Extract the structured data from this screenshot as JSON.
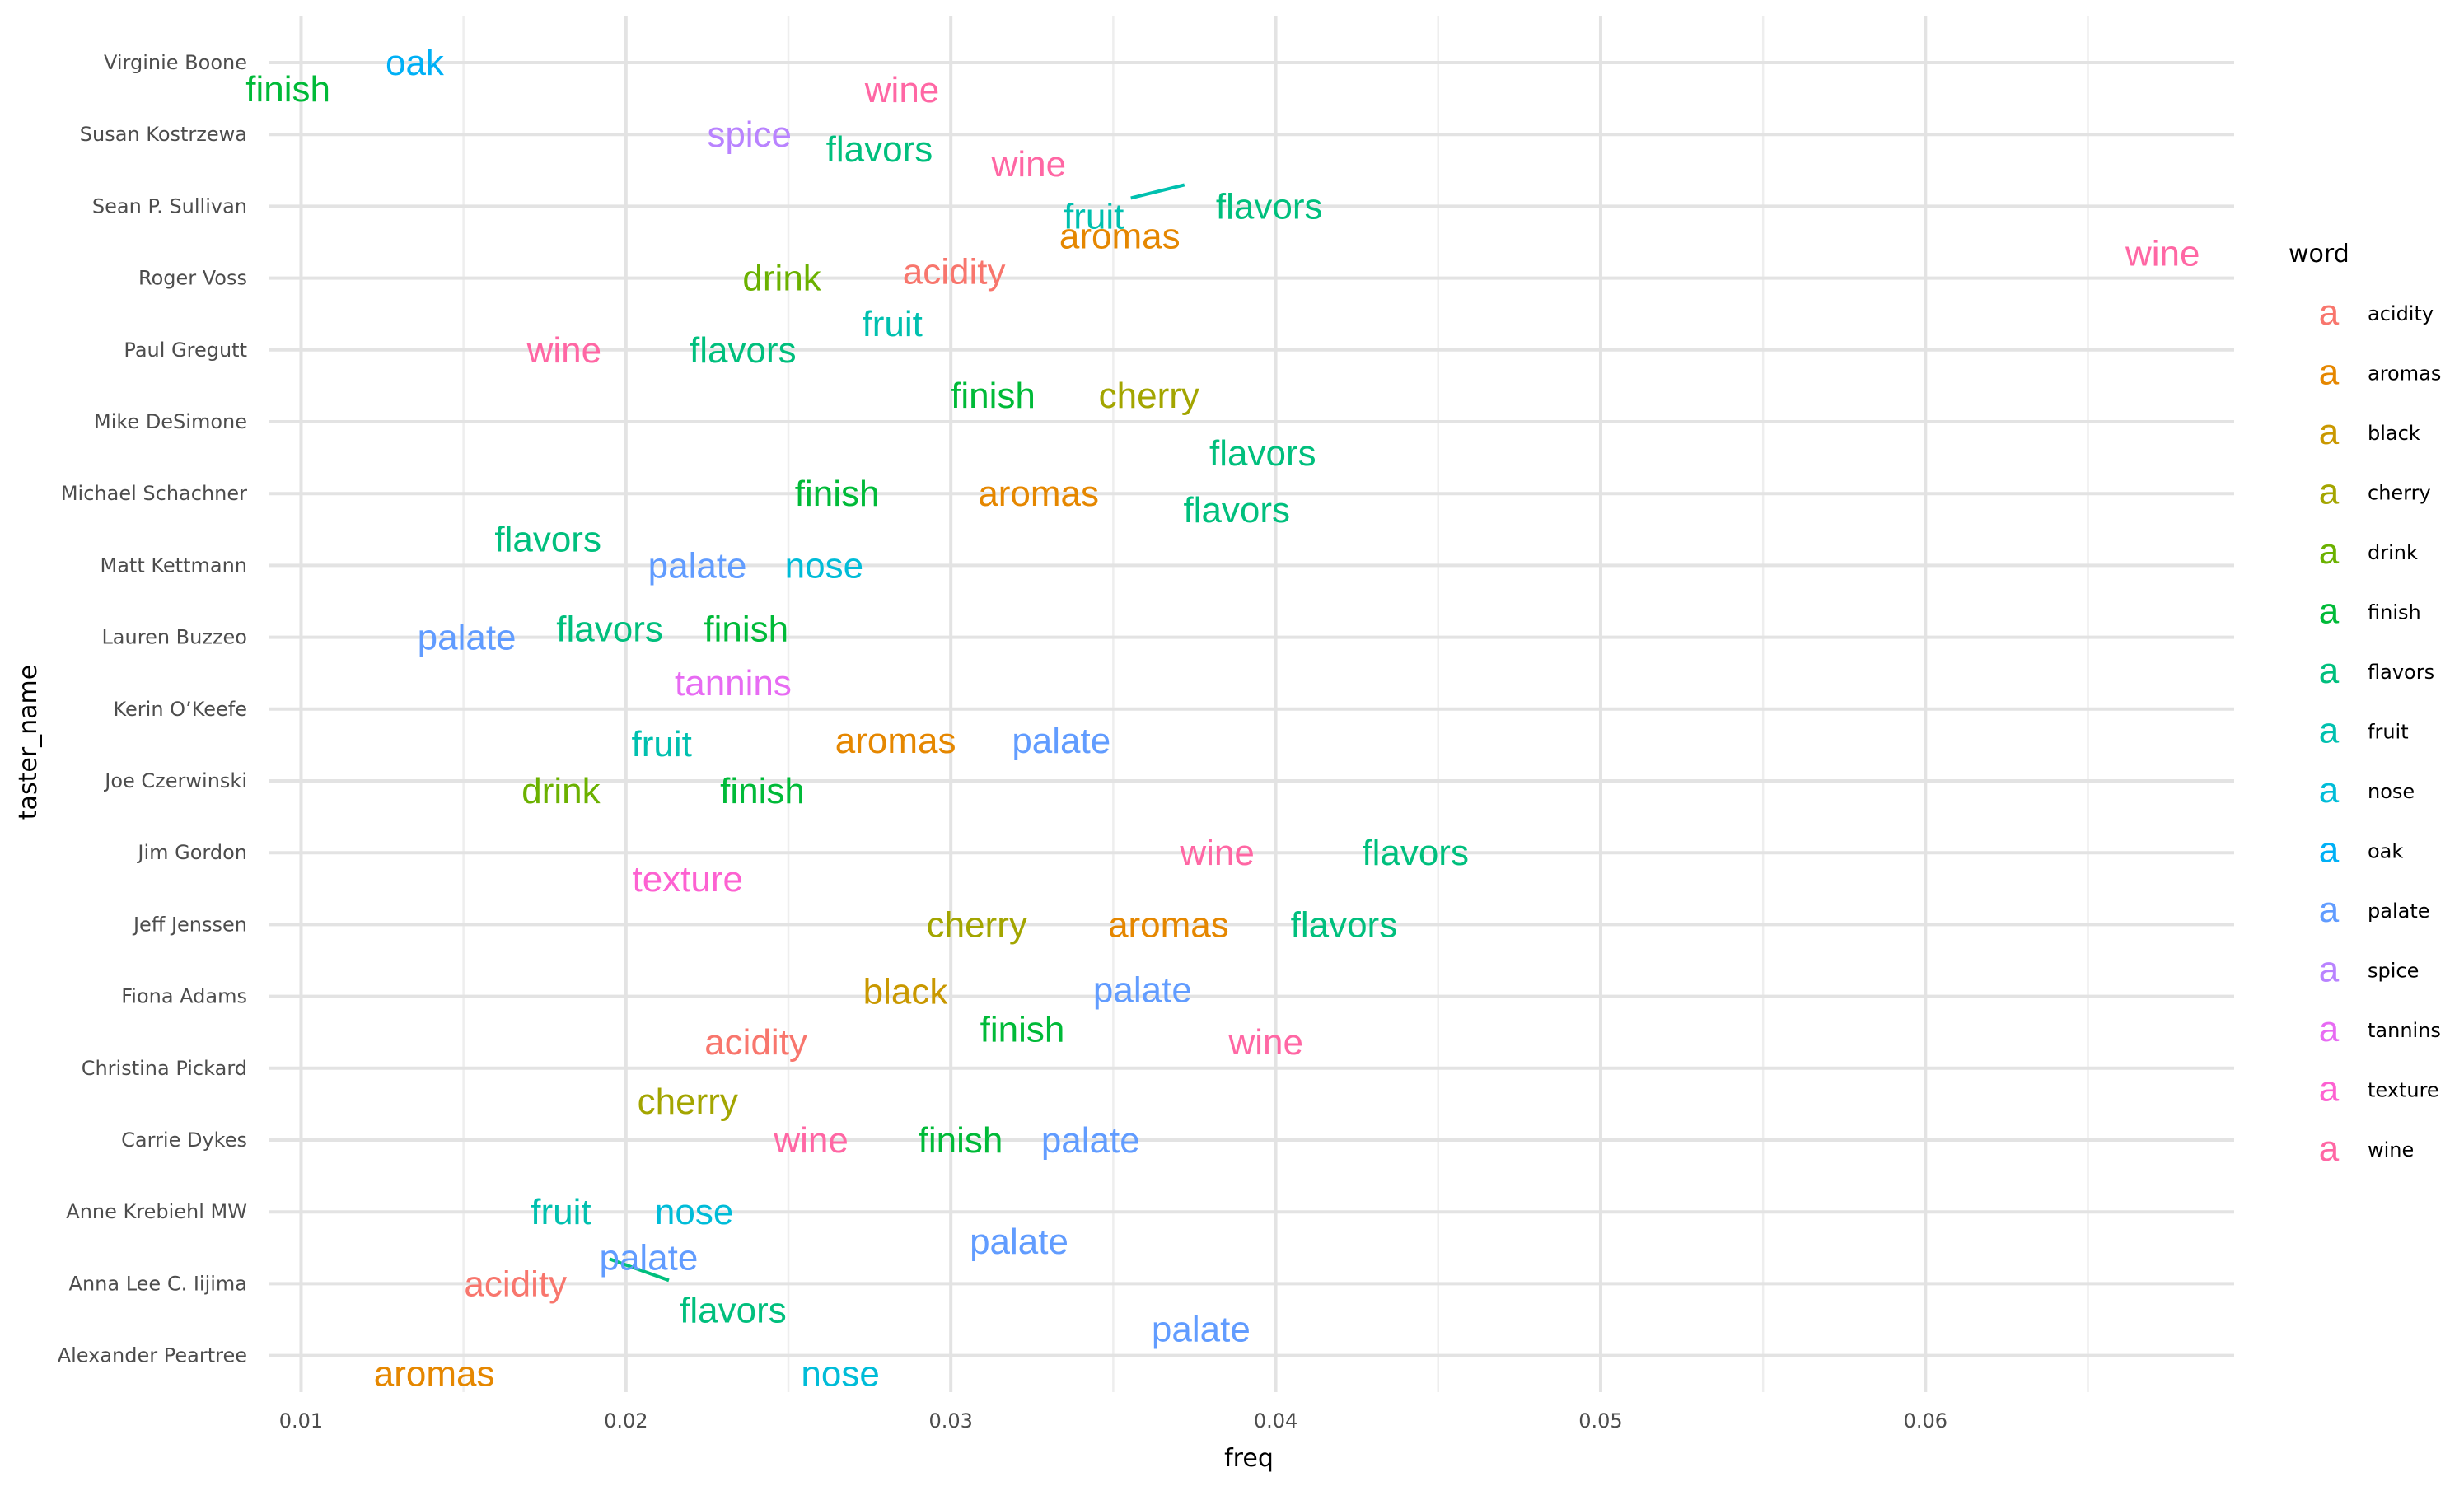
{
  "chart_data": {
    "type": "scatter",
    "xlabel": "freq",
    "ylabel": "taster_name",
    "xlim": [
      0.009,
      0.0695
    ],
    "x_ticks": [
      0.01,
      0.02,
      0.03,
      0.04,
      0.05,
      0.06
    ],
    "x_tick_labels": [
      "0.01",
      "0.02",
      "0.03",
      "0.04",
      "0.05",
      "0.06"
    ],
    "grid": true,
    "legend_position": "right",
    "legend_title": "word",
    "legend_key_glyph": "a",
    "categories": [
      "Virginie Boone",
      "Susan Kostrzewa",
      "Sean P. Sullivan",
      "Roger Voss",
      "Paul Gregutt",
      "Mike DeSimone",
      "Michael Schachner",
      "Matt Kettmann",
      "Lauren Buzzeo",
      "Kerin O’Keefe",
      "Joe Czerwinski",
      "Jim Gordon",
      "Jeff Jenssen",
      "Fiona Adams",
      "Christina Pickard",
      "Carrie Dykes",
      "Anne Krebiehl MW",
      "Anna Lee C. Iijima",
      "Alexander Peartree"
    ],
    "words": [
      {
        "name": "acidity",
        "color": "#F8766D"
      },
      {
        "name": "aromas",
        "color": "#E58700"
      },
      {
        "name": "black",
        "color": "#C99800"
      },
      {
        "name": "cherry",
        "color": "#A3A500"
      },
      {
        "name": "drink",
        "color": "#6BB100"
      },
      {
        "name": "finish",
        "color": "#00BA38"
      },
      {
        "name": "flavors",
        "color": "#00BF7D"
      },
      {
        "name": "fruit",
        "color": "#00C0AF"
      },
      {
        "name": "nose",
        "color": "#00BCD8"
      },
      {
        "name": "oak",
        "color": "#00B0F6"
      },
      {
        "name": "palate",
        "color": "#619CFF"
      },
      {
        "name": "spice",
        "color": "#B983FF"
      },
      {
        "name": "tannins",
        "color": "#E76BF3"
      },
      {
        "name": "texture",
        "color": "#FD61D1"
      },
      {
        "name": "wine",
        "color": "#FF67A4"
      }
    ],
    "points": [
      {
        "taster": "Virginie Boone",
        "word": "oak",
        "freq": 0.0135
      },
      {
        "taster": "Virginie Boone",
        "word": "finish",
        "freq": 0.0096
      },
      {
        "taster": "Virginie Boone",
        "word": "wine",
        "freq": 0.0285
      },
      {
        "taster": "Susan Kostrzewa",
        "word": "spice",
        "freq": 0.0238
      },
      {
        "taster": "Susan Kostrzewa",
        "word": "flavors",
        "freq": 0.0278
      },
      {
        "taster": "Susan Kostrzewa",
        "word": "wine",
        "freq": 0.0324
      },
      {
        "taster": "Sean P. Sullivan",
        "word": "fruit",
        "freq": 0.0344
      },
      {
        "taster": "Sean P. Sullivan",
        "word": "aromas",
        "freq": 0.0352
      },
      {
        "taster": "Sean P. Sullivan",
        "word": "flavors",
        "freq": 0.0398
      },
      {
        "taster": "Roger Voss",
        "word": "wine",
        "freq": 0.0673
      },
      {
        "taster": "Roger Voss",
        "word": "drink",
        "freq": 0.0248
      },
      {
        "taster": "Roger Voss",
        "word": "acidity",
        "freq": 0.0301
      },
      {
        "taster": "Paul Gregutt",
        "word": "fruit",
        "freq": 0.0282
      },
      {
        "taster": "Paul Gregutt",
        "word": "wine",
        "freq": 0.0181
      },
      {
        "taster": "Paul Gregutt",
        "word": "flavors",
        "freq": 0.0236
      },
      {
        "taster": "Mike DeSimone",
        "word": "finish",
        "freq": 0.0313
      },
      {
        "taster": "Mike DeSimone",
        "word": "cherry",
        "freq": 0.0361
      },
      {
        "taster": "Mike DeSimone",
        "word": "flavors",
        "freq": 0.0396
      },
      {
        "taster": "Michael Schachner",
        "word": "finish",
        "freq": 0.0265
      },
      {
        "taster": "Michael Schachner",
        "word": "aromas",
        "freq": 0.0327
      },
      {
        "taster": "Michael Schachner",
        "word": "flavors",
        "freq": 0.0388
      },
      {
        "taster": "Matt Kettmann",
        "word": "flavors",
        "freq": 0.0176
      },
      {
        "taster": "Matt Kettmann",
        "word": "palate",
        "freq": 0.0222
      },
      {
        "taster": "Matt Kettmann",
        "word": "nose",
        "freq": 0.0261
      },
      {
        "taster": "Lauren Buzzeo",
        "word": "palate",
        "freq": 0.0151
      },
      {
        "taster": "Lauren Buzzeo",
        "word": "flavors",
        "freq": 0.0195
      },
      {
        "taster": "Lauren Buzzeo",
        "word": "finish",
        "freq": 0.0237
      },
      {
        "taster": "Kerin O’Keefe",
        "word": "tannins",
        "freq": 0.0233
      },
      {
        "taster": "Kerin O’Keefe",
        "word": "fruit",
        "freq": 0.0211
      },
      {
        "taster": "Kerin O’Keefe",
        "word": "aromas",
        "freq": 0.0283
      },
      {
        "taster": "Kerin O’Keefe",
        "word": "palate",
        "freq": 0.0334
      },
      {
        "taster": "Joe Czerwinski",
        "word": "drink",
        "freq": 0.018
      },
      {
        "taster": "Joe Czerwinski",
        "word": "finish",
        "freq": 0.0242
      },
      {
        "taster": "Jim Gordon",
        "word": "wine",
        "freq": 0.0382
      },
      {
        "taster": "Jim Gordon",
        "word": "flavors",
        "freq": 0.0443
      },
      {
        "taster": "Jim Gordon",
        "word": "texture",
        "freq": 0.0219
      },
      {
        "taster": "Jeff Jenssen",
        "word": "cherry",
        "freq": 0.0308
      },
      {
        "taster": "Jeff Jenssen",
        "word": "aromas",
        "freq": 0.0367
      },
      {
        "taster": "Jeff Jenssen",
        "word": "flavors",
        "freq": 0.0421
      },
      {
        "taster": "Fiona Adams",
        "word": "black",
        "freq": 0.0286
      },
      {
        "taster": "Fiona Adams",
        "word": "palate",
        "freq": 0.0359
      },
      {
        "taster": "Fiona Adams",
        "word": "finish",
        "freq": 0.0322
      },
      {
        "taster": "Christina Pickard",
        "word": "acidity",
        "freq": 0.024
      },
      {
        "taster": "Christina Pickard",
        "word": "wine",
        "freq": 0.0397
      },
      {
        "taster": "Christina Pickard",
        "word": "cherry",
        "freq": 0.0219
      },
      {
        "taster": "Carrie Dykes",
        "word": "wine",
        "freq": 0.0257
      },
      {
        "taster": "Carrie Dykes",
        "word": "finish",
        "freq": 0.0303
      },
      {
        "taster": "Carrie Dykes",
        "word": "palate",
        "freq": 0.0343
      },
      {
        "taster": "Anne Krebiehl MW",
        "word": "fruit",
        "freq": 0.018
      },
      {
        "taster": "Anne Krebiehl MW",
        "word": "nose",
        "freq": 0.0221
      },
      {
        "taster": "Anne Krebiehl MW",
        "word": "palate",
        "freq": 0.0321
      },
      {
        "taster": "Anna Lee C. Iijima",
        "word": "acidity",
        "freq": 0.0166
      },
      {
        "taster": "Anna Lee C. Iijima",
        "word": "palate",
        "freq": 0.0207
      },
      {
        "taster": "Anna Lee C. Iijima",
        "word": "flavors",
        "freq": 0.0233
      },
      {
        "taster": "Alexander Peartree",
        "word": "palate",
        "freq": 0.0377
      },
      {
        "taster": "Alexander Peartree",
        "word": "aromas",
        "freq": 0.0141
      },
      {
        "taster": "Alexander Peartree",
        "word": "nose",
        "freq": 0.0266
      }
    ]
  }
}
